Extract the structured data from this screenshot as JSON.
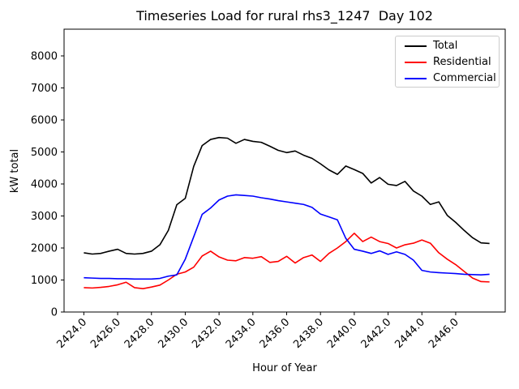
{
  "chart_data": {
    "type": "line",
    "title": "Timeseries Load for rural rhs3_1247  Day 102",
    "xlabel": "Hour of Year",
    "ylabel": "kW total",
    "xlim": [
      2422.83,
      2448.93
    ],
    "ylim": [
      0,
      8835
    ],
    "grid": false,
    "legend_position": "upper right",
    "xticks": {
      "values": [
        2424,
        2426,
        2428,
        2430,
        2432,
        2434,
        2436,
        2438,
        2440,
        2442,
        2444,
        2446
      ],
      "labels": [
        "2424.0",
        "2426.0",
        "2428.0",
        "2430.0",
        "2432.0",
        "2434.0",
        "2436.0",
        "2438.0",
        "2440.0",
        "2442.0",
        "2444.0",
        "2446.0"
      ]
    },
    "yticks": {
      "values": [
        0,
        1000,
        2000,
        3000,
        4000,
        5000,
        6000,
        7000,
        8000
      ],
      "labels": [
        "0",
        "1000",
        "2000",
        "3000",
        "4000",
        "5000",
        "6000",
        "7000",
        "8000"
      ]
    },
    "x": [
      2424.0,
      2424.5,
      2425.0,
      2425.5,
      2426.0,
      2426.5,
      2427.0,
      2427.5,
      2428.0,
      2428.5,
      2429.0,
      2429.5,
      2430.0,
      2430.5,
      2431.0,
      2431.5,
      2432.0,
      2432.5,
      2433.0,
      2433.5,
      2434.0,
      2434.5,
      2435.0,
      2435.5,
      2436.0,
      2436.5,
      2437.0,
      2437.5,
      2438.0,
      2438.5,
      2439.0,
      2439.5,
      2440.0,
      2440.5,
      2441.0,
      2441.5,
      2442.0,
      2442.5,
      2443.0,
      2443.5,
      2444.0,
      2444.5,
      2445.0,
      2445.5,
      2446.0,
      2446.5,
      2447.0,
      2447.5,
      2448.0
    ],
    "series": [
      {
        "name": "Total",
        "color": "#000000",
        "values": [
          1850,
          1810,
          1830,
          1900,
          1960,
          1830,
          1810,
          1830,
          1900,
          2100,
          2550,
          3350,
          3550,
          4550,
          5200,
          5390,
          5450,
          5430,
          5270,
          5390,
          5330,
          5300,
          5180,
          5050,
          4980,
          5030,
          4900,
          4800,
          4630,
          4440,
          4300,
          4560,
          4450,
          4330,
          4030,
          4200,
          3990,
          3950,
          4080,
          3780,
          3620,
          3360,
          3440,
          3020,
          2800,
          2550,
          2320,
          2160,
          2140
        ]
      },
      {
        "name": "Residential",
        "color": "#ff0000",
        "values": [
          760,
          750,
          770,
          800,
          850,
          930,
          760,
          730,
          780,
          840,
          1000,
          1180,
          1250,
          1400,
          1750,
          1900,
          1720,
          1620,
          1600,
          1700,
          1680,
          1730,
          1550,
          1580,
          1740,
          1530,
          1700,
          1780,
          1580,
          1830,
          2000,
          2200,
          2460,
          2200,
          2340,
          2200,
          2140,
          2000,
          2100,
          2150,
          2250,
          2150,
          1850,
          1650,
          1480,
          1270,
          1060,
          950,
          940
        ]
      },
      {
        "name": "Commercial",
        "color": "#0000ff",
        "values": [
          1070,
          1060,
          1050,
          1050,
          1040,
          1040,
          1030,
          1030,
          1030,
          1050,
          1120,
          1160,
          1650,
          2350,
          3050,
          3250,
          3500,
          3620,
          3660,
          3640,
          3620,
          3570,
          3530,
          3480,
          3440,
          3400,
          3360,
          3270,
          3060,
          2970,
          2880,
          2300,
          1960,
          1900,
          1830,
          1910,
          1800,
          1880,
          1800,
          1620,
          1300,
          1250,
          1230,
          1215,
          1200,
          1180,
          1170,
          1160,
          1180
        ]
      }
    ]
  }
}
